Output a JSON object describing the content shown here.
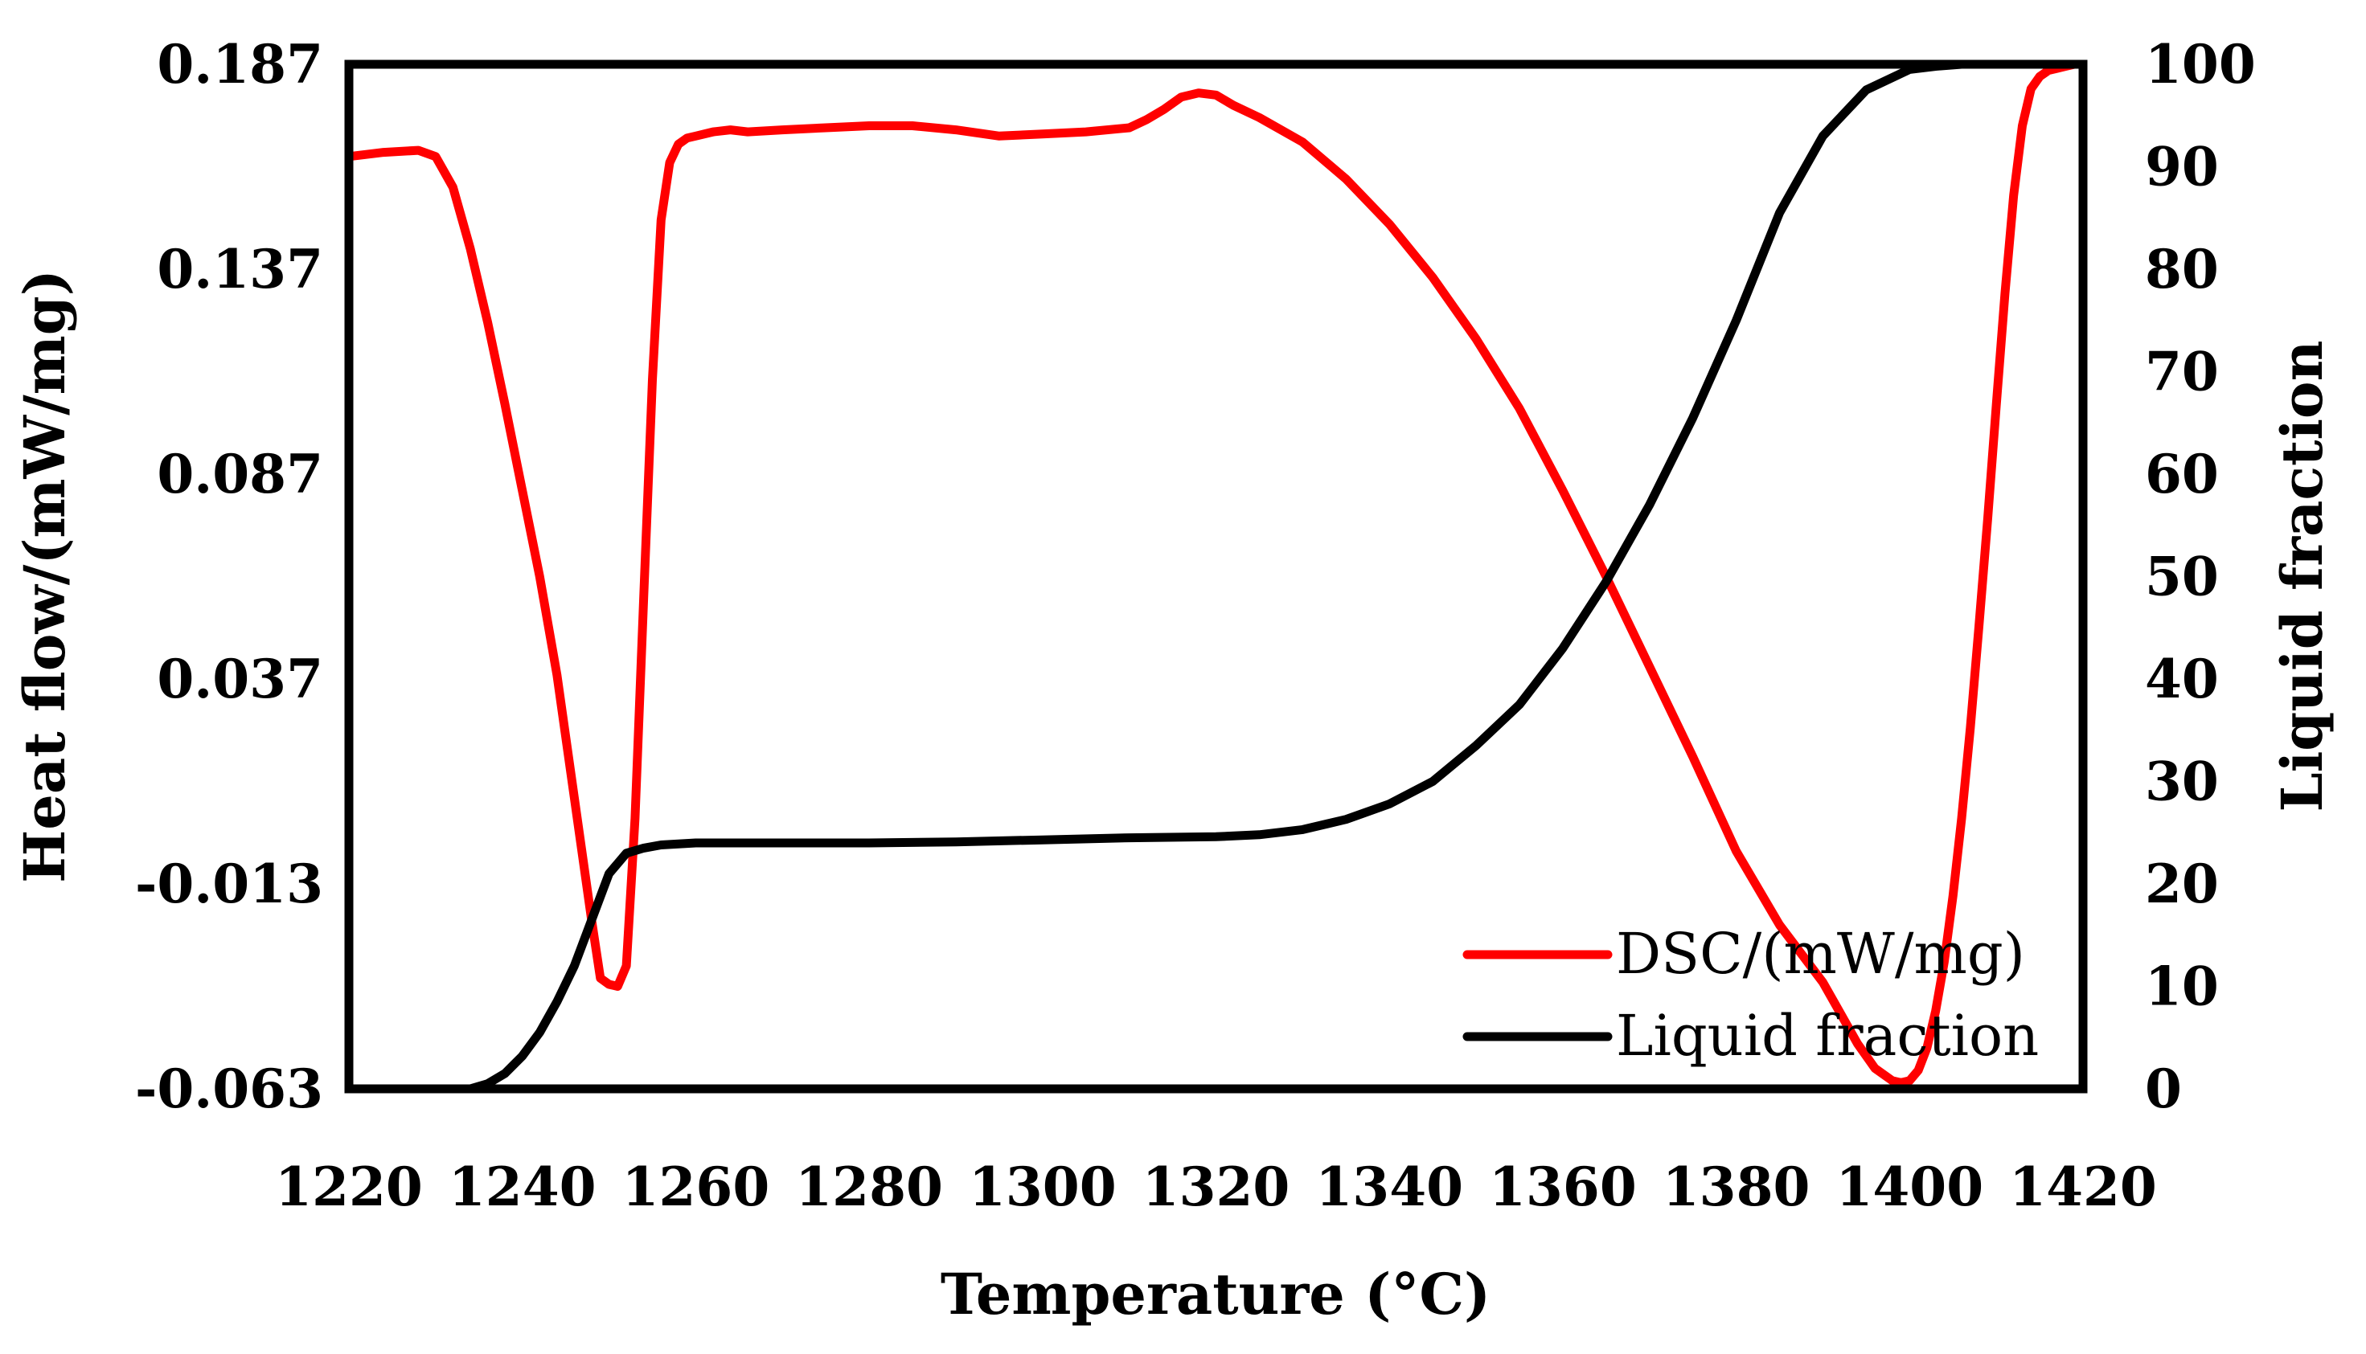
{
  "chart_data": {
    "type": "line",
    "title": "",
    "xlabel": "Temperature (°C)",
    "ylabel_left": "Heat flow/(mW/mg)",
    "ylabel_right": "Liquid fraction",
    "xlim": [
      1220,
      1420
    ],
    "ylim_left": [
      -0.063,
      0.187
    ],
    "ylim_right": [
      0,
      100
    ],
    "x_ticks": [
      "1220",
      "1240",
      "1260",
      "1280",
      "1300",
      "1320",
      "1340",
      "1360",
      "1380",
      "1400",
      "1420"
    ],
    "y_left_ticks": [
      "-0.063",
      "-0.013",
      "0.037",
      "0.087",
      "0.137",
      "0.187"
    ],
    "y_right_ticks": [
      "0",
      "10",
      "20",
      "30",
      "40",
      "50",
      "60",
      "70",
      "80",
      "90",
      "100"
    ],
    "grid": false,
    "legend_position": "bottom-right",
    "series": [
      {
        "name": "DSC/(mW/mg)",
        "axis": "left",
        "color": "#ff0000",
        "x": [
          1220,
          1224,
          1228,
          1230,
          1232,
          1234,
          1236,
          1238,
          1240,
          1242,
          1244,
          1246,
          1248,
          1249,
          1250,
          1251,
          1252,
          1253,
          1254,
          1255,
          1256,
          1257,
          1258,
          1259,
          1260,
          1262,
          1264,
          1266,
          1270,
          1275,
          1280,
          1285,
          1290,
          1295,
          1300,
          1305,
          1310,
          1312,
          1314,
          1316,
          1318,
          1320,
          1322,
          1325,
          1330,
          1335,
          1340,
          1345,
          1350,
          1355,
          1360,
          1365,
          1370,
          1375,
          1380,
          1385,
          1390,
          1394,
          1396,
          1398,
          1399,
          1400,
          1401,
          1402,
          1403,
          1404,
          1405,
          1406,
          1407,
          1408,
          1409,
          1410,
          1411,
          1412,
          1413,
          1414,
          1415,
          1416,
          1417,
          1418,
          1419,
          1420
        ],
        "values": [
          0.1645,
          0.1655,
          0.166,
          0.1645,
          0.157,
          0.142,
          0.124,
          0.104,
          0.083,
          0.062,
          0.038,
          0.008,
          -0.022,
          -0.036,
          -0.0375,
          -0.038,
          -0.033,
          0.003,
          0.057,
          0.11,
          0.149,
          0.163,
          0.1675,
          0.169,
          0.1695,
          0.1705,
          0.171,
          0.1705,
          0.171,
          0.1715,
          0.172,
          0.172,
          0.171,
          0.1695,
          0.17,
          0.1705,
          0.1715,
          0.1735,
          0.176,
          0.179,
          0.18,
          0.1795,
          0.177,
          0.174,
          0.168,
          0.159,
          0.148,
          0.135,
          0.12,
          0.103,
          0.083,
          0.062,
          0.04,
          0.018,
          -0.005,
          -0.023,
          -0.037,
          -0.052,
          -0.058,
          -0.061,
          -0.0615,
          -0.061,
          -0.0585,
          -0.053,
          -0.044,
          -0.032,
          -0.016,
          0.003,
          0.025,
          0.05,
          0.076,
          0.104,
          0.131,
          0.155,
          0.172,
          0.181,
          0.184,
          0.1855,
          0.186,
          0.1865,
          0.187,
          0.187
        ]
      },
      {
        "name": "Liquid fraction",
        "axis": "right",
        "color": "#000000",
        "x": [
          1220,
          1230,
          1234,
          1236,
          1238,
          1240,
          1242,
          1244,
          1246,
          1248,
          1250,
          1252,
          1254,
          1256,
          1258,
          1260,
          1270,
          1280,
          1290,
          1300,
          1310,
          1320,
          1325,
          1330,
          1335,
          1340,
          1345,
          1350,
          1355,
          1360,
          1365,
          1370,
          1375,
          1380,
          1385,
          1390,
          1395,
          1400,
          1403,
          1406,
          1409,
          1412,
          1415,
          1418,
          1420
        ],
        "values": [
          0,
          0,
          0,
          0.5,
          1.5,
          3.2,
          5.5,
          8.5,
          12,
          16.5,
          21,
          23,
          23.5,
          23.8,
          23.9,
          24,
          24,
          24,
          24.1,
          24.3,
          24.5,
          24.6,
          24.8,
          25.3,
          26.3,
          27.8,
          30,
          33.5,
          37.5,
          43,
          49.5,
          57,
          65.5,
          75,
          85.5,
          93,
          97.5,
          99.5,
          99.8,
          100,
          100,
          100,
          100,
          100,
          100
        ]
      }
    ]
  }
}
